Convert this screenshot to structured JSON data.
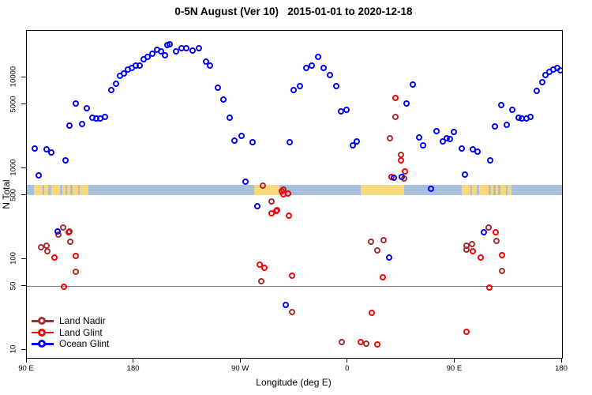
{
  "title": "0-5N August (Ver 10)   2015-01-01 to 2020-12-18",
  "y_axis": {
    "title": "N Total",
    "ticks": [
      {
        "label": "10000",
        "value": 10000
      },
      {
        "label": "5000",
        "value": 5000
      },
      {
        "label": "1000",
        "value": 1000
      },
      {
        "label": "500",
        "value": 500
      },
      {
        "label": "100",
        "value": 100
      },
      {
        "label": "50",
        "value": 50
      },
      {
        "label": "10",
        "value": 10
      }
    ]
  },
  "x_axis": {
    "title": "Longitude (deg E)",
    "ticks": [
      {
        "label": "90 E",
        "deg": 90
      },
      {
        "label": "180",
        "deg": 180
      },
      {
        "label": "90 W",
        "deg": 270
      },
      {
        "label": "0",
        "deg": 360
      },
      {
        "label": "90 E",
        "deg": 450
      },
      {
        "label": "180",
        "deg": 540
      }
    ]
  },
  "legend": {
    "items": [
      {
        "label": "Land Nadir",
        "color": "#A52A2A"
      },
      {
        "label": "Land Glint",
        "color": "#FF0000"
      },
      {
        "label": "Ocean Glint",
        "color": "#0000FF"
      }
    ]
  },
  "chart_data": {
    "type": "scatter",
    "title": "0-5N August (Ver 10)   2015-01-01 to 2020-12-18",
    "xlabel": "Longitude (deg E)",
    "ylabel": "N Total",
    "x_axis_note": "longitude axis spans 450 deg starting at 90E, wrapping 90E>180>90W>0>90E>180",
    "x_range_deg": [
      90,
      540
    ],
    "y_scale": "log10",
    "y_range": [
      8,
      30000
    ],
    "y_ticks": [
      10,
      50,
      100,
      500,
      1000,
      5000,
      10000
    ],
    "reference_line_N": 50,
    "map_band": {
      "N_range": [
        510,
        660
      ],
      "ocean_color": "#A9BFDC",
      "land_color": "#F9D77C",
      "land_segments_deg": [
        [
          96,
          103
        ],
        [
          104.5,
          108
        ],
        [
          110.5,
          118
        ],
        [
          120,
          122.5
        ],
        [
          124,
          126.5
        ],
        [
          128.5,
          133
        ],
        [
          134.5,
          141.5
        ],
        [
          281,
          302.5
        ],
        [
          370.5,
          407
        ],
        [
          456,
          463
        ],
        [
          464.5,
          468
        ],
        [
          470.5,
          478
        ],
        [
          480,
          482.5
        ],
        [
          484,
          486.5
        ],
        [
          488.5,
          493
        ],
        [
          494.5,
          497.5
        ]
      ]
    },
    "series": [
      {
        "name": "Land Nadir",
        "color": "#A52A2A",
        "points": [
          [
            102.2,
            135
          ],
          [
            106.7,
            139
          ],
          [
            107.3,
            121
          ],
          [
            117.1,
            185
          ],
          [
            121.1,
            222
          ],
          [
            126.2,
            198
          ],
          [
            126.7,
            154
          ],
          [
            131.8,
            72
          ],
          [
            287.5,
            56
          ],
          [
            289.1,
            635
          ],
          [
            295.8,
            423
          ],
          [
            300.9,
            345
          ],
          [
            305.8,
            580
          ],
          [
            313.1,
            26
          ],
          [
            355.3,
            12
          ],
          [
            375.8,
            11.6
          ],
          [
            379.8,
            155
          ],
          [
            385.3,
            124
          ],
          [
            390.2,
            160
          ],
          [
            395.8,
            2120
          ],
          [
            400.2,
            3670
          ],
          [
            404.7,
            1380
          ],
          [
            407.5,
            760
          ],
          [
            459.8,
            139
          ],
          [
            460.2,
            127
          ],
          [
            464.7,
            144
          ],
          [
            478.5,
            222
          ],
          [
            485.3,
            157
          ],
          [
            489.8,
            73
          ]
        ]
      },
      {
        "name": "Land Glint",
        "color": "#FF0000",
        "points": [
          [
            113.3,
            103
          ],
          [
            121.8,
            49
          ],
          [
            125.5,
            196
          ],
          [
            131.8,
            107
          ],
          [
            285.8,
            86
          ],
          [
            289.8,
            79
          ],
          [
            295.8,
            318
          ],
          [
            299.8,
            339
          ],
          [
            304.7,
            550
          ],
          [
            306.2,
            515
          ],
          [
            310.2,
            520
          ],
          [
            310.5,
            296
          ],
          [
            313.1,
            65
          ],
          [
            370.9,
            12.1
          ],
          [
            380.2,
            25.4
          ],
          [
            384.7,
            11.4
          ],
          [
            389.5,
            63
          ],
          [
            396.9,
            790
          ],
          [
            400.2,
            5870
          ],
          [
            404.7,
            1210
          ],
          [
            408.5,
            905
          ],
          [
            460.2,
            15.6
          ],
          [
            465.1,
            120
          ],
          [
            471.8,
            103
          ],
          [
            479.5,
            48.4
          ],
          [
            484.7,
            197
          ],
          [
            490.2,
            109
          ]
        ]
      },
      {
        "name": "Ocean Glint",
        "color": "#0000FF",
        "points": [
          [
            97.3,
            1620
          ],
          [
            100.5,
            830
          ],
          [
            107,
            1600
          ],
          [
            111,
            1480
          ],
          [
            116.2,
            200
          ],
          [
            122.7,
            1210
          ],
          [
            126,
            2900
          ],
          [
            131.3,
            5070
          ],
          [
            136.7,
            3010
          ],
          [
            140.7,
            4490
          ],
          [
            145.3,
            3600
          ],
          [
            148.7,
            3530
          ],
          [
            152,
            3530
          ],
          [
            156,
            3670
          ],
          [
            161.3,
            7120
          ],
          [
            165.3,
            8500
          ],
          [
            168.7,
            10400
          ],
          [
            172,
            11000
          ],
          [
            175.3,
            12200
          ],
          [
            178.7,
            12700
          ],
          [
            182,
            13500
          ],
          [
            185.3,
            13300
          ],
          [
            188.7,
            15600
          ],
          [
            192,
            16500
          ],
          [
            196,
            18200
          ],
          [
            200,
            20100
          ],
          [
            203.3,
            19000
          ],
          [
            206.7,
            17200
          ],
          [
            208.7,
            22300
          ],
          [
            210.2,
            23000
          ],
          [
            215.8,
            19100
          ],
          [
            220.7,
            20800
          ],
          [
            224.7,
            20600
          ],
          [
            229.5,
            19500
          ],
          [
            234.7,
            20600
          ],
          [
            240.9,
            14900
          ],
          [
            244.2,
            13300
          ],
          [
            250.9,
            7560
          ],
          [
            255.8,
            5690
          ],
          [
            260.7,
            3550
          ],
          [
            264.7,
            1990
          ],
          [
            270.7,
            2260
          ],
          [
            274.5,
            706
          ],
          [
            280.2,
            1930
          ],
          [
            284.2,
            380
          ],
          [
            308,
            31
          ],
          [
            311.3,
            1930
          ],
          [
            314.7,
            7160
          ],
          [
            320.2,
            7970
          ],
          [
            325.1,
            12600
          ],
          [
            329.8,
            13300
          ],
          [
            335.1,
            16500
          ],
          [
            340.2,
            12600
          ],
          [
            345.3,
            10500
          ],
          [
            350.2,
            7900
          ],
          [
            354.2,
            4200
          ],
          [
            359.1,
            4400
          ],
          [
            364.7,
            1760
          ],
          [
            367.5,
            1940
          ],
          [
            395.3,
            104
          ],
          [
            398.7,
            775
          ],
          [
            405.8,
            790
          ],
          [
            409.8,
            5130
          ],
          [
            415.1,
            8260
          ],
          [
            420.2,
            2160
          ],
          [
            423.5,
            1760
          ],
          [
            430.2,
            590
          ],
          [
            434.7,
            2540
          ],
          [
            440.2,
            1950
          ],
          [
            443.1,
            2110
          ],
          [
            446,
            2060
          ],
          [
            449.5,
            2500
          ],
          [
            455.8,
            1630
          ],
          [
            458.7,
            840
          ],
          [
            465.3,
            1600
          ],
          [
            469.1,
            1500
          ],
          [
            474.7,
            197
          ],
          [
            480.2,
            1210
          ],
          [
            484,
            2870
          ],
          [
            489.1,
            4960
          ],
          [
            494,
            2970
          ],
          [
            498.7,
            4380
          ],
          [
            503.5,
            3550
          ],
          [
            506.4,
            3510
          ],
          [
            510.2,
            3510
          ],
          [
            513.8,
            3630
          ],
          [
            519.1,
            7040
          ],
          [
            523.5,
            8740
          ],
          [
            526.2,
            10500
          ],
          [
            529.8,
            11300
          ],
          [
            533.1,
            12200
          ],
          [
            536.2,
            12600
          ],
          [
            539.1,
            11900
          ]
        ]
      }
    ]
  }
}
